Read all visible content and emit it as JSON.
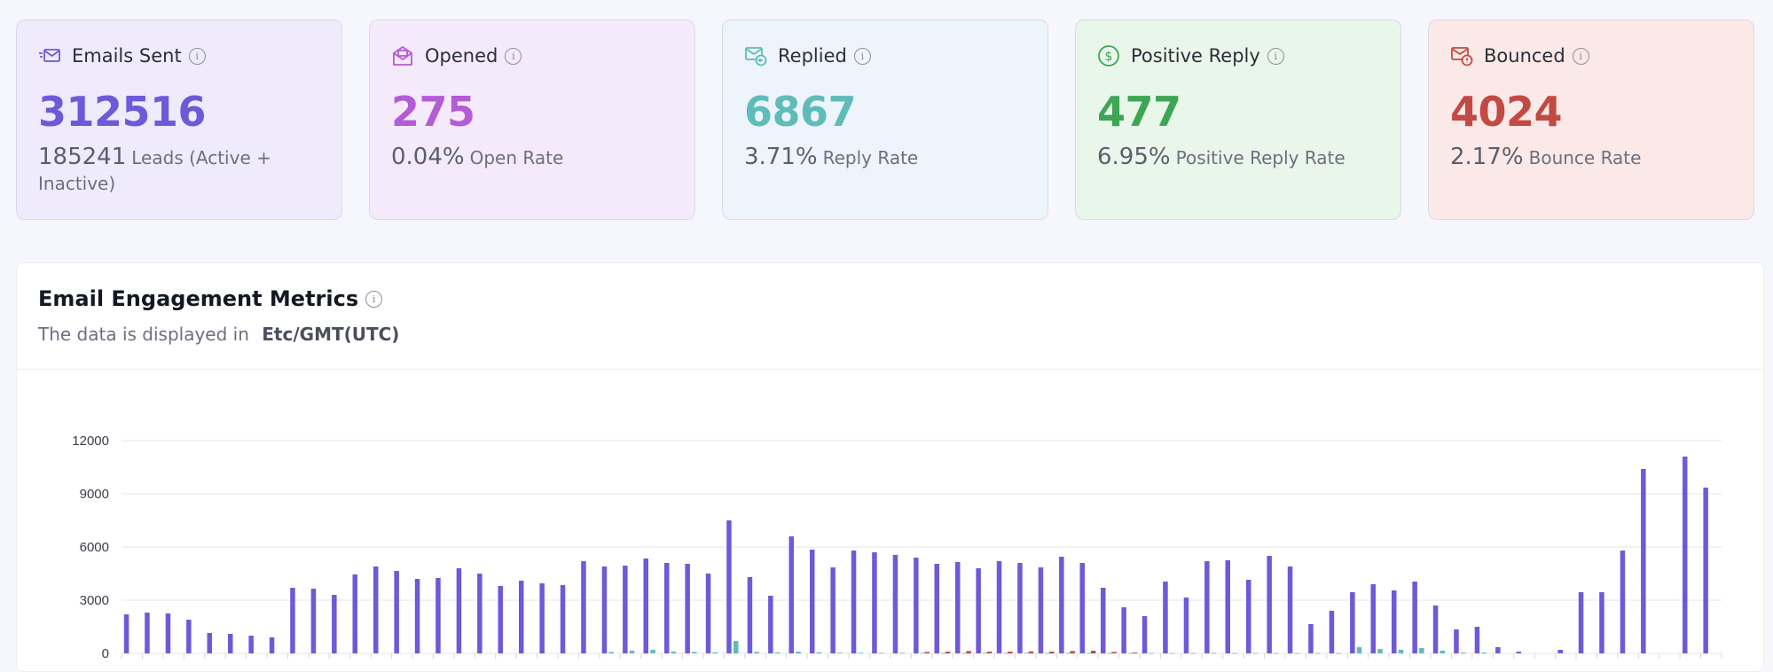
{
  "stats": [
    {
      "label": "Emails Sent",
      "value": "312516",
      "sub_num": "185241",
      "sub_text": "Leads (Active + Inactive)",
      "icon": "mail-send-icon",
      "bg": "#efeafc",
      "color": "#6e59d9"
    },
    {
      "label": "Opened",
      "value": "275",
      "sub_num": "0.04%",
      "sub_text": "Open Rate",
      "icon": "mail-open-icon",
      "bg": "#f5eafb",
      "color": "#b45bd6"
    },
    {
      "label": "Replied",
      "value": "6867",
      "sub_num": "3.71%",
      "sub_text": "Reply Rate",
      "icon": "mail-reply-icon",
      "bg": "#edf4fc",
      "color": "#5fbcb8"
    },
    {
      "label": "Positive Reply",
      "value": "477",
      "sub_num": "6.95%",
      "sub_text": "Positive Reply Rate",
      "icon": "dollar-circle-icon",
      "bg": "#e9f6ea",
      "color": "#3ea553"
    },
    {
      "label": "Bounced",
      "value": "4024",
      "sub_num": "2.17%",
      "sub_text": "Bounce Rate",
      "icon": "mail-alert-icon",
      "bg": "#fbe9e7",
      "color": "#c24a44"
    }
  ],
  "panel": {
    "title": "Email Engagement Metrics",
    "subtitle": "The data is displayed in",
    "timezone": "Etc/GMT(UTC)"
  },
  "chart_data": {
    "type": "bar",
    "ylim": [
      0,
      12000
    ],
    "yticks": [
      "12000",
      "9000",
      "6000",
      "3000",
      "0"
    ],
    "grid": true,
    "series": [
      {
        "color": "#6e59d9",
        "values": [
          2200,
          2300,
          2250,
          1900,
          1150,
          1100,
          1000,
          900,
          3700,
          3650,
          3300,
          4450,
          4900,
          4650,
          4200,
          4250,
          4800,
          4500,
          3800,
          4100,
          3950,
          3850,
          5200,
          4900,
          4950,
          5350,
          5100,
          5050,
          4500,
          7500,
          4300,
          3250,
          6600,
          5850,
          4850,
          5800,
          5700,
          5550,
          5400,
          5050,
          5150,
          4800,
          5200,
          5100,
          4850,
          5450,
          5100,
          3700,
          2600,
          2100,
          4050,
          3150,
          5200,
          5250,
          4150,
          5500,
          4900,
          1650,
          2400,
          3450,
          3900,
          3550,
          4050,
          2700,
          1350,
          1500,
          350,
          100,
          0,
          200,
          3450,
          3450,
          5800,
          10400,
          0,
          11100,
          9350
        ]
      },
      {
        "color": "#5fbcb8",
        "values": [
          0,
          0,
          0,
          0,
          0,
          0,
          0,
          0,
          0,
          0,
          0,
          0,
          0,
          0,
          0,
          0,
          0,
          0,
          0,
          0,
          0,
          0,
          0,
          80,
          150,
          200,
          100,
          80,
          60,
          700,
          80,
          60,
          100,
          60,
          40,
          40,
          30,
          30,
          30,
          30,
          30,
          30,
          30,
          30,
          30,
          30,
          30,
          20,
          20,
          20,
          20,
          20,
          20,
          20,
          20,
          20,
          20,
          20,
          20,
          350,
          250,
          200,
          300,
          150,
          50,
          50,
          0,
          0,
          0,
          0,
          0,
          0,
          0,
          0,
          0,
          0,
          0
        ]
      },
      {
        "color": "#c24a44",
        "values": [
          0,
          0,
          0,
          0,
          0,
          0,
          0,
          0,
          0,
          0,
          0,
          0,
          0,
          0,
          0,
          0,
          0,
          0,
          0,
          0,
          0,
          0,
          0,
          0,
          0,
          0,
          0,
          0,
          0,
          0,
          0,
          0,
          0,
          0,
          0,
          0,
          0,
          0,
          80,
          100,
          130,
          100,
          100,
          110,
          100,
          130,
          150,
          80,
          50,
          0,
          0,
          0,
          0,
          0,
          0,
          0,
          0,
          0,
          0,
          0,
          0,
          0,
          0,
          0,
          0,
          0,
          0,
          0,
          0,
          0,
          0,
          0,
          0,
          0,
          0,
          0,
          0
        ]
      }
    ]
  }
}
